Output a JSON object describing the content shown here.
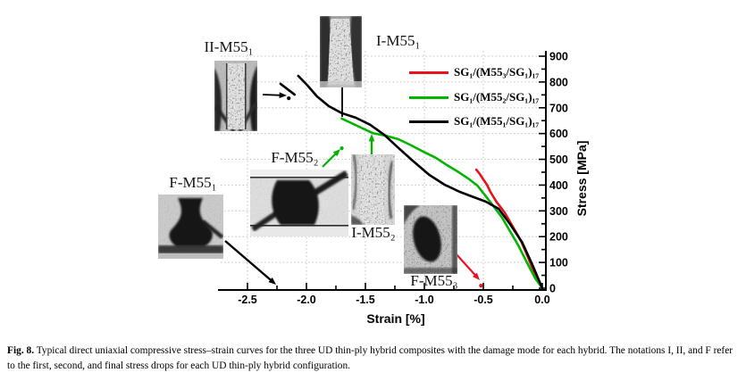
{
  "figure": {
    "caption_label": "Fig. 8.",
    "caption_text": "Typical direct uniaxial compressive stress–strain curves for the three UD thin-ply hybrid composites with the damage mode for each hybrid. The notations I, II, and F refer to the first, second, and final stress drops for each UD thin-ply hybrid configuration."
  },
  "axes": {
    "x_label": "Strain [%]",
    "y_label": "Stress [MPa]",
    "x_ticks": [
      "-2.5",
      "-2.0",
      "-1.5",
      "-1.0",
      "-0.5",
      "0.0"
    ],
    "y_ticks": [
      "0",
      "100",
      "200",
      "300",
      "400",
      "500",
      "600",
      "700",
      "800",
      "900"
    ]
  },
  "legend": [
    {
      "label": "SG₁/(M55₃/SG₁)₁₇",
      "color": "#e8121f"
    },
    {
      "label": "SG₁/(M55₂/SG₁)₁₇",
      "color": "#00b400"
    },
    {
      "label": "SG₁/(M55₁/SG₁)₁₇",
      "color": "#000000"
    }
  ],
  "annotations": {
    "ii_m551": "II-M55₁",
    "i_m551": "I-M55₁",
    "f_m552": "F-M55₂",
    "i_m552": "I-M55₂",
    "f_m551": "F-M55₁",
    "f_m553": "F-M55₃"
  },
  "chart_data": {
    "type": "line",
    "title": "",
    "xlabel": "Strain [%]",
    "ylabel": "Stress [MPa]",
    "xlim": [
      -2.75,
      0.05
    ],
    "ylim": [
      0,
      900
    ],
    "x_ticks": [
      -2.5,
      -2.0,
      -1.5,
      -1.0,
      -0.5,
      0.0
    ],
    "y_ticks": [
      0,
      100,
      200,
      300,
      400,
      500,
      600,
      700,
      800,
      900
    ],
    "grid": "dotted major both axes",
    "legend_position": "upper right inside",
    "series": [
      {
        "name": "SG₁/(M55₃/SG₁)₁₇",
        "key": "m553",
        "color": "#e8121f",
        "points": [
          [
            0,
            0
          ],
          [
            -0.06,
            52
          ],
          [
            -0.12,
            118
          ],
          [
            -0.18,
            183
          ],
          [
            -0.25,
            239
          ],
          [
            -0.32,
            294
          ],
          [
            -0.39,
            336
          ],
          [
            -0.44,
            374
          ],
          [
            -0.47,
            402
          ],
          [
            -0.5,
            422
          ],
          [
            -0.53,
            443
          ],
          [
            -0.56,
            460
          ]
        ]
      },
      {
        "name": "SG₁/(M55₂/SG₁)₁₇",
        "key": "m552",
        "color": "#00b400",
        "points": [
          [
            0,
            0
          ],
          [
            -0.06,
            38
          ],
          [
            -0.13,
            100
          ],
          [
            -0.2,
            163
          ],
          [
            -0.27,
            218
          ],
          [
            -0.34,
            273
          ],
          [
            -0.42,
            322
          ],
          [
            -0.49,
            363
          ],
          [
            -0.55,
            398
          ],
          [
            -0.63,
            426
          ],
          [
            -0.72,
            453
          ],
          [
            -0.81,
            478
          ],
          [
            -0.9,
            505
          ],
          [
            -1.01,
            530
          ],
          [
            -1.11,
            554
          ],
          [
            -1.22,
            578
          ],
          [
            -1.33,
            592
          ],
          [
            -1.44,
            602
          ],
          [
            -1.57,
            630
          ],
          [
            -1.7,
            658
          ]
        ]
      },
      {
        "name": "SG₁/(M55₁/SG₁)₁₇",
        "key": "m551",
        "color": "#000000",
        "points": [
          [
            0,
            0
          ],
          [
            -0.08,
            87
          ],
          [
            -0.17,
            177
          ],
          [
            -0.27,
            246
          ],
          [
            -0.37,
            308
          ],
          [
            -0.48,
            336
          ],
          [
            -0.58,
            353
          ],
          [
            -0.7,
            374
          ],
          [
            -0.83,
            402
          ],
          [
            -0.96,
            440
          ],
          [
            -1.1,
            495
          ],
          [
            -1.22,
            544
          ],
          [
            -1.34,
            595
          ],
          [
            -1.46,
            634
          ],
          [
            -1.58,
            661
          ],
          [
            -1.7,
            679
          ],
          [
            -1.81,
            706
          ],
          [
            -1.91,
            744
          ],
          [
            -1.99,
            786
          ],
          [
            -2.07,
            824
          ]
        ],
        "break_segment": [
          [
            -2.22,
            793
          ],
          [
            -2.1,
            751
          ]
        ]
      }
    ],
    "markers": [
      {
        "label": "post-drop point II-M55₁",
        "x": -2.15,
        "y": 737,
        "color": "#000000"
      },
      {
        "label": "post-drop point F-M55₂",
        "x": -1.7,
        "y": 543,
        "color": "#00b400"
      },
      {
        "label": "post-drop point F-M55₃",
        "x": -0.52,
        "y": 10,
        "color": "#e8121f"
      }
    ]
  }
}
